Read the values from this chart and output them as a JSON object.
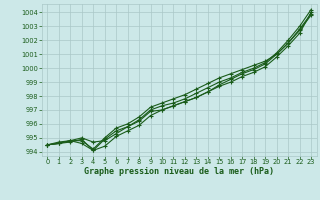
{
  "x": [
    0,
    1,
    2,
    3,
    4,
    5,
    6,
    7,
    8,
    9,
    10,
    11,
    12,
    13,
    14,
    15,
    16,
    17,
    18,
    19,
    20,
    21,
    22,
    23
  ],
  "line1": [
    994.5,
    994.6,
    994.7,
    994.9,
    994.1,
    994.9,
    995.5,
    995.8,
    996.3,
    997.0,
    997.3,
    997.5,
    997.8,
    998.2,
    998.6,
    999.0,
    999.3,
    999.7,
    1000.0,
    1000.4,
    1001.1,
    1002.0,
    1003.0,
    1004.2
  ],
  "line2": [
    994.5,
    994.6,
    994.8,
    994.8,
    994.2,
    995.0,
    995.7,
    996.0,
    996.5,
    997.2,
    997.5,
    997.8,
    998.1,
    998.5,
    998.9,
    999.3,
    999.6,
    999.9,
    1000.2,
    1000.5,
    1001.0,
    1001.8,
    1002.8,
    1003.9
  ],
  "line3": [
    994.5,
    994.6,
    994.8,
    995.0,
    994.7,
    994.8,
    995.3,
    995.8,
    996.2,
    996.9,
    997.0,
    997.3,
    997.6,
    997.9,
    998.3,
    998.7,
    999.0,
    999.4,
    999.7,
    1000.1,
    1000.8,
    1001.6,
    1002.5,
    1004.0
  ],
  "line4": [
    994.5,
    994.7,
    994.8,
    994.6,
    994.1,
    994.4,
    995.1,
    995.5,
    995.9,
    996.6,
    997.0,
    997.3,
    997.6,
    997.9,
    998.3,
    998.8,
    999.2,
    999.6,
    999.9,
    1000.3,
    1001.0,
    1001.8,
    1002.7,
    1003.8
  ],
  "bg_color": "#cce8e8",
  "grid_color": "#aac8c8",
  "line_color": "#1a5c1a",
  "xlabel": "Graphe pression niveau de la mer (hPa)",
  "ylim": [
    993.7,
    1004.6
  ],
  "xlim": [
    -0.5,
    23.5
  ],
  "yticks": [
    994,
    995,
    996,
    997,
    998,
    999,
    1000,
    1001,
    1002,
    1003,
    1004
  ],
  "xticks": [
    0,
    1,
    2,
    3,
    4,
    5,
    6,
    7,
    8,
    9,
    10,
    11,
    12,
    13,
    14,
    15,
    16,
    17,
    18,
    19,
    20,
    21,
    22,
    23
  ],
  "tick_fontsize": 4.8,
  "xlabel_fontsize": 6.0,
  "line_width": 0.8,
  "marker_size": 2.2
}
